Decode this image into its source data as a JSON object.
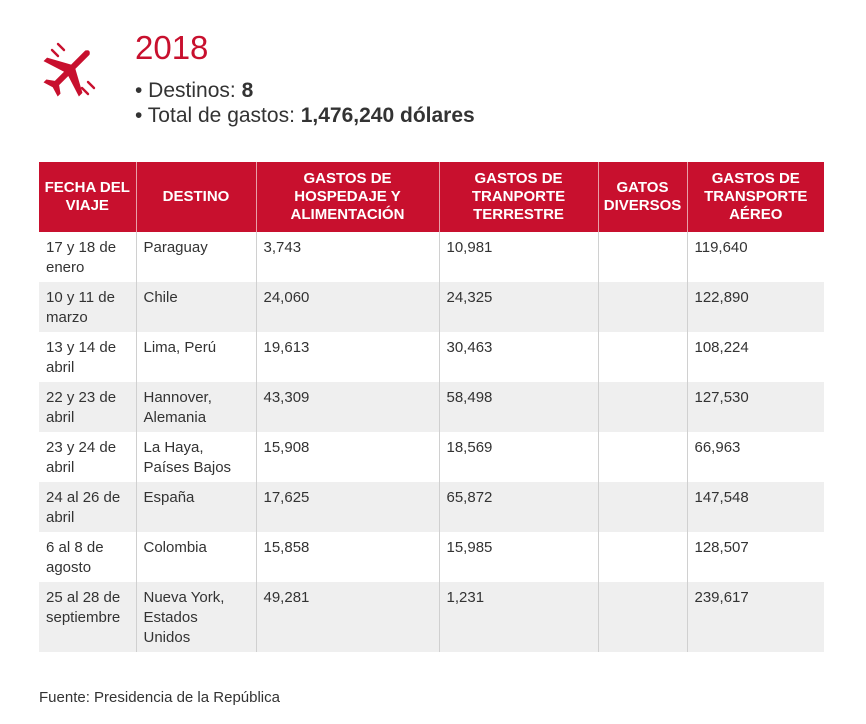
{
  "header": {
    "year": "2018",
    "destinos_label": "• Destinos: ",
    "destinos_value": "8",
    "gastos_label": "• Total de gastos: ",
    "gastos_value": "1,476,240 dólares"
  },
  "colors": {
    "accent": "#c8102e",
    "row_alt": "#efefef"
  },
  "table": {
    "headers": [
      "FECHA DEL VIAJE",
      "DESTINO",
      "GASTOS DE HOSPEDAJE Y ALIMENTACIÓN",
      "GASTOS DE TRANPORTE TERRESTRE",
      "GATOS DIVERSOS",
      "GASTOS DE TRANSPORTE AÉREO"
    ],
    "rows": [
      [
        "17 y 18 de enero",
        "Paraguay",
        "3,743",
        "10,981",
        "",
        "119,640"
      ],
      [
        "10 y 11 de marzo",
        "Chile",
        "24,060",
        "24,325",
        "",
        "122,890"
      ],
      [
        "13 y 14 de abril",
        "Lima, Perú",
        "19,613",
        "30,463",
        "",
        "108,224"
      ],
      [
        "22 y 23 de abril",
        "Hannover, Alemania",
        "43,309",
        "58,498",
        "",
        "127,530"
      ],
      [
        "23 y 24 de abril",
        "La Haya, Países Bajos",
        "15,908",
        "18,569",
        "",
        "66,963"
      ],
      [
        "24 al 26 de abril",
        "España",
        "17,625",
        "65,872",
        "",
        "147,548"
      ],
      [
        "6 al 8 de agosto",
        "Colombia",
        "15,858",
        "15,985",
        "",
        "128,507"
      ],
      [
        "25 al 28 de septiembre",
        "Nueva York, Estados Unidos",
        "49,281",
        "1,231",
        "",
        "239,617"
      ]
    ]
  },
  "source": "Fuente: Presidencia de la República",
  "icons": {
    "plane": "airplane-icon"
  }
}
